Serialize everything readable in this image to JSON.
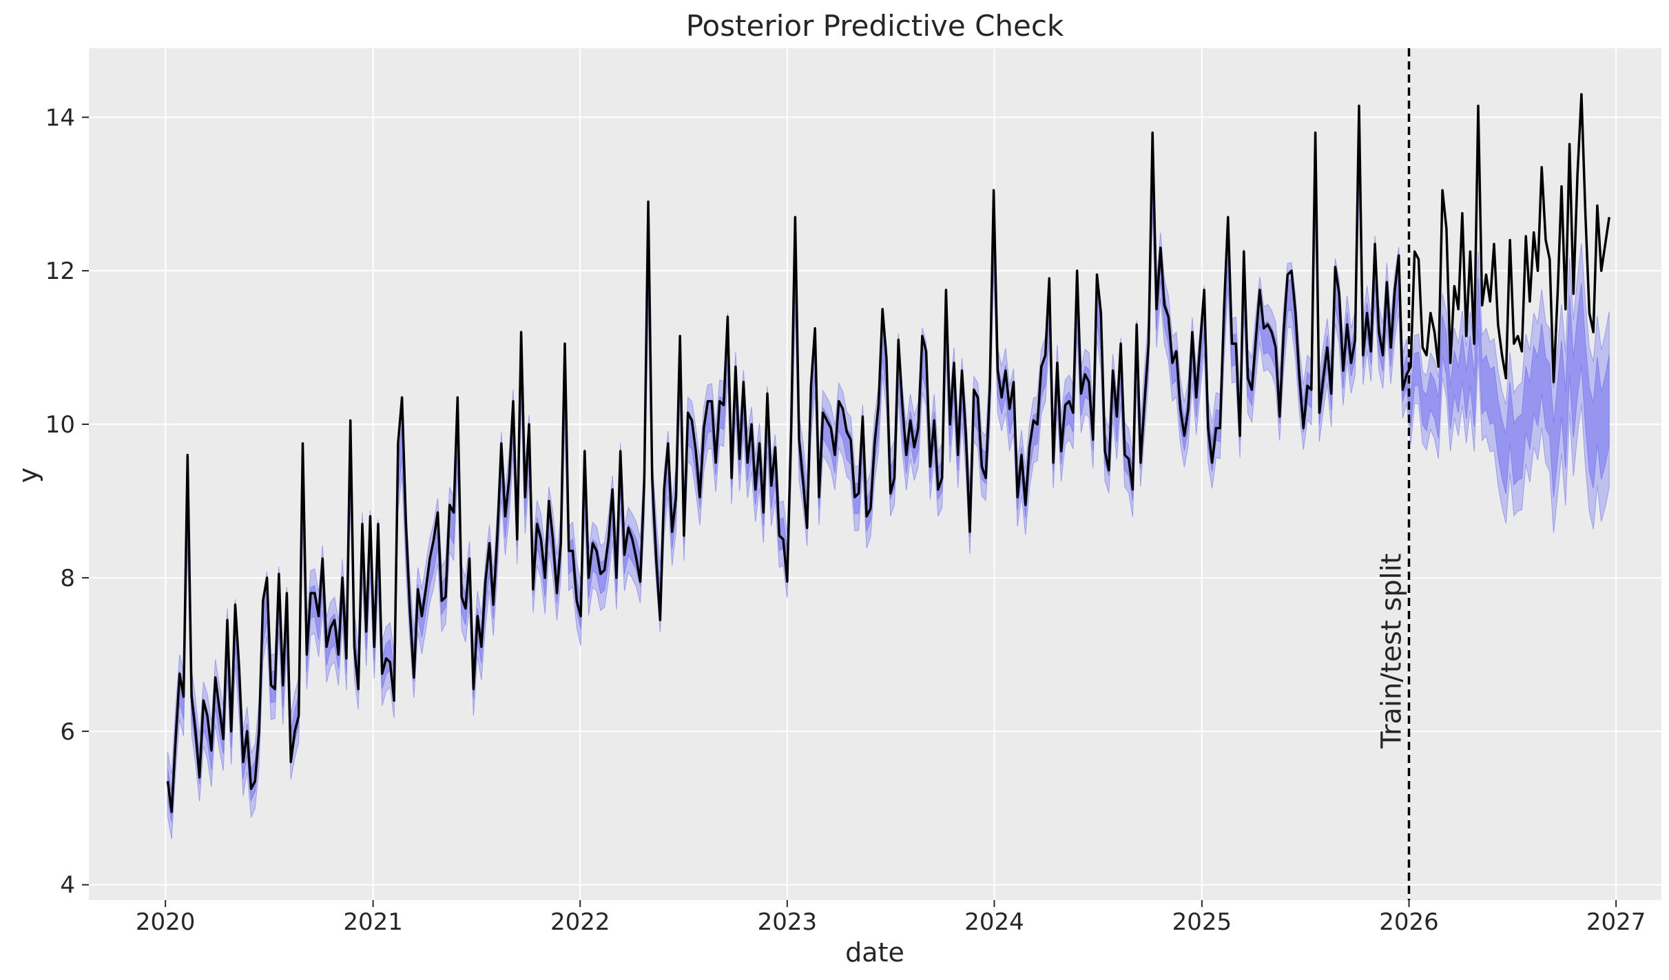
{
  "chart_data": {
    "type": "line",
    "title": "Posterior Predictive Check",
    "xlabel": "date",
    "ylabel": "y",
    "x_ticks": [
      "2020",
      "2021",
      "2022",
      "2023",
      "2024",
      "2025",
      "2026",
      "2027"
    ],
    "y_ticks": [
      4,
      6,
      8,
      10,
      12,
      14
    ],
    "xlim": [
      "2019-08-19",
      "2027-03-22"
    ],
    "ylim": [
      3.8,
      14.9
    ],
    "grid": true,
    "background": "#ebebeb",
    "colors": {
      "observed": "#000000",
      "band_outer": "#b8b8f0",
      "band_inner": "#8e8ef0",
      "split_line": "#000000"
    },
    "annotation": {
      "text": "Train/test split",
      "x": "2026-01-01"
    },
    "series": [
      {
        "kind": "observed",
        "x_start": "2020-01-05",
        "x_step_days": 7,
        "values": [
          5.35,
          4.95,
          5.9,
          6.75,
          6.45,
          9.6,
          6.45,
          6.0,
          5.4,
          6.4,
          6.2,
          5.75,
          6.7,
          6.3,
          5.9,
          7.45,
          6.0,
          7.65,
          6.8,
          5.6,
          6.0,
          5.25,
          5.35,
          6.0,
          7.7,
          8.0,
          6.6,
          6.55,
          8.05,
          6.6,
          7.8,
          5.6,
          6.0,
          6.2,
          9.75,
          7.0,
          7.8,
          7.8,
          7.5,
          8.25,
          7.1,
          7.35,
          7.45,
          7.0,
          8.0,
          6.95,
          10.05,
          7.1,
          6.55,
          8.7,
          7.3,
          8.8,
          7.1,
          8.7,
          6.75,
          6.95,
          6.9,
          6.4,
          9.75,
          10.35,
          8.7,
          7.55,
          6.7,
          7.85,
          7.5,
          7.85,
          8.25,
          8.5,
          8.85,
          7.7,
          7.75,
          8.95,
          8.85,
          10.35,
          7.75,
          7.6,
          8.25,
          6.55,
          7.5,
          7.1,
          7.95,
          8.45,
          7.65,
          8.55,
          9.75,
          8.8,
          9.3,
          10.3,
          8.5,
          11.2,
          9.05,
          10.0,
          7.85,
          8.7,
          8.5,
          8.0,
          9.0,
          8.5,
          7.8,
          8.45,
          11.05,
          8.35,
          8.35,
          7.7,
          7.5,
          9.65,
          8.0,
          8.45,
          8.35,
          8.05,
          8.1,
          8.5,
          9.15,
          8.0,
          9.65,
          8.3,
          8.65,
          8.5,
          8.25,
          7.95,
          9.25,
          12.9,
          9.3,
          8.25,
          7.45,
          9.15,
          9.75,
          8.6,
          9.05,
          11.15,
          8.55,
          10.15,
          10.05,
          9.65,
          9.05,
          9.95,
          10.3,
          10.3,
          9.5,
          10.3,
          10.25,
          11.4,
          9.3,
          10.75,
          9.55,
          10.55,
          9.5,
          10.0,
          9.15,
          9.75,
          8.85,
          10.4,
          9.2,
          9.7,
          8.55,
          8.5,
          7.95,
          9.95,
          12.7,
          9.8,
          9.25,
          8.65,
          10.5,
          11.25,
          9.05,
          10.15,
          10.05,
          9.95,
          9.6,
          10.3,
          10.2,
          9.9,
          9.8,
          9.05,
          9.1,
          10.1,
          8.8,
          8.9,
          9.75,
          10.25,
          11.5,
          10.85,
          9.1,
          9.3,
          11.1,
          10.25,
          9.6,
          10.05,
          9.7,
          9.95,
          11.15,
          10.95,
          9.45,
          10.05,
          9.15,
          9.3,
          11.75,
          10.0,
          10.8,
          9.6,
          10.7,
          9.85,
          8.6,
          10.45,
          10.35,
          9.45,
          9.3,
          10.45,
          13.05,
          10.7,
          10.35,
          10.7,
          10.2,
          10.55,
          9.05,
          9.6,
          8.95,
          9.7,
          10.05,
          10.0,
          10.75,
          10.9,
          11.9,
          9.5,
          10.8,
          9.65,
          10.25,
          10.3,
          10.15,
          12.0,
          10.4,
          10.65,
          10.55,
          9.8,
          11.95,
          11.45,
          9.65,
          9.4,
          10.7,
          10.1,
          11.05,
          9.6,
          9.55,
          9.15,
          11.3,
          9.5,
          10.3,
          11.05,
          13.8,
          11.5,
          12.3,
          11.55,
          11.4,
          10.8,
          10.95,
          10.2,
          9.85,
          10.2,
          11.2,
          10.35,
          11.05,
          11.75,
          9.95,
          9.5,
          9.95,
          9.95,
          11.5,
          12.7,
          11.05,
          11.05,
          9.85,
          12.25,
          10.6,
          10.45,
          11.1,
          11.75,
          11.25,
          11.3,
          11.2,
          11.0,
          10.1,
          11.2,
          11.95,
          12.0,
          11.45,
          10.6,
          9.95,
          10.5,
          10.45,
          13.8,
          10.15,
          10.6,
          11.0,
          10.4,
          12.05,
          11.7,
          10.7,
          11.3,
          10.8,
          11.1,
          14.15,
          10.9,
          11.45,
          10.95,
          12.35,
          11.2,
          10.9,
          11.85,
          11.0,
          11.75,
          12.2,
          10.45,
          10.65,
          10.75,
          12.25,
          12.15,
          11.0,
          10.9,
          11.45,
          11.2,
          10.75,
          13.05,
          12.55,
          10.8,
          11.8,
          11.5,
          12.75,
          11.15,
          12.25,
          11.05,
          14.15,
          11.55,
          11.95,
          11.6,
          12.35,
          11.3,
          10.9,
          10.6,
          12.4,
          11.05,
          11.15,
          10.95,
          12.45,
          11.6,
          12.5,
          12.0,
          13.35,
          12.4,
          12.15,
          10.55,
          11.7,
          13.1,
          11.5,
          13.65,
          11.7,
          13.25,
          14.3,
          12.75,
          11.45,
          11.2,
          12.85,
          12.0,
          12.35,
          12.7
        ]
      }
    ]
  }
}
